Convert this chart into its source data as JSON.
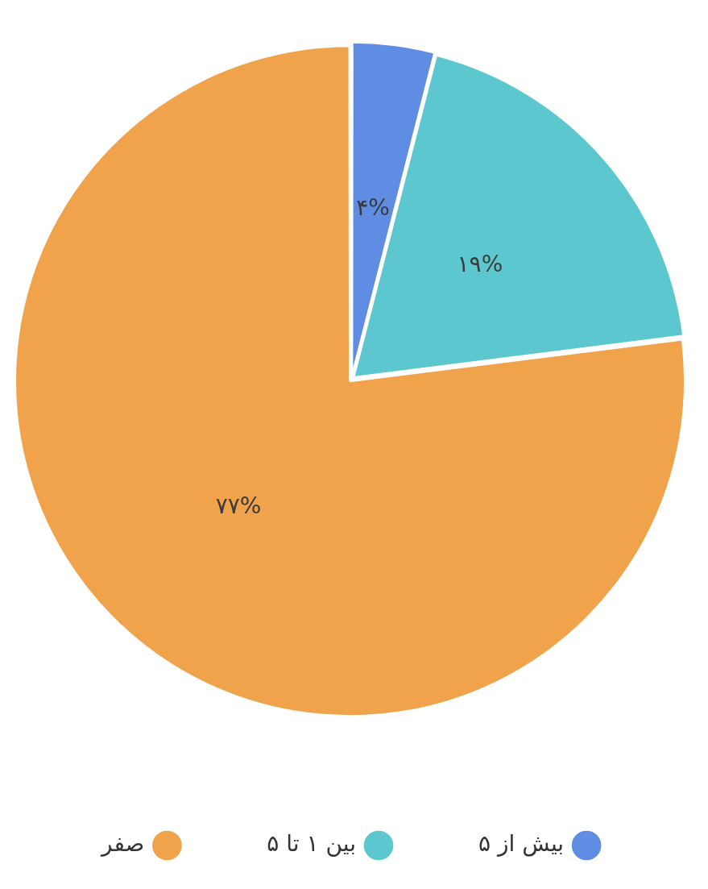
{
  "chart_data": {
    "type": "pie",
    "categories": [
      "بیش از ۵",
      "بین ۱ تا ۵",
      "صفر"
    ],
    "values": [
      4,
      19,
      77
    ],
    "colors": [
      "#5f8de3",
      "#5dc7cf",
      "#f0a34a"
    ],
    "value_labels": [
      "۴%",
      "۱۹%",
      "۷۷%"
    ],
    "legend": "bottom"
  }
}
